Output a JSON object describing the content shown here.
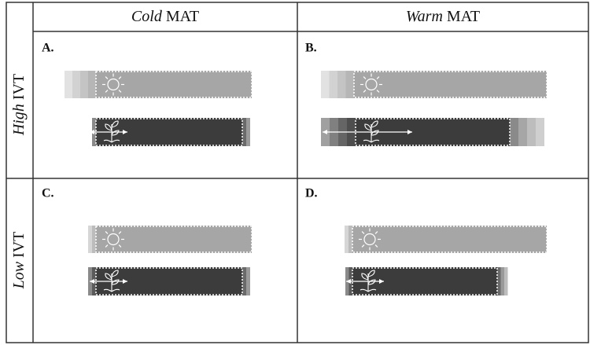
{
  "columns": [
    {
      "em": "Cold",
      "text": "MAT"
    },
    {
      "em": "Warm",
      "text": "MAT"
    }
  ],
  "rows": [
    {
      "em": "High",
      "text": "IVT"
    },
    {
      "em": "Low",
      "text": "IVT"
    }
  ],
  "panels": [
    {
      "label": "A."
    },
    {
      "label": "B."
    },
    {
      "label": "C."
    },
    {
      "label": "D."
    }
  ]
}
